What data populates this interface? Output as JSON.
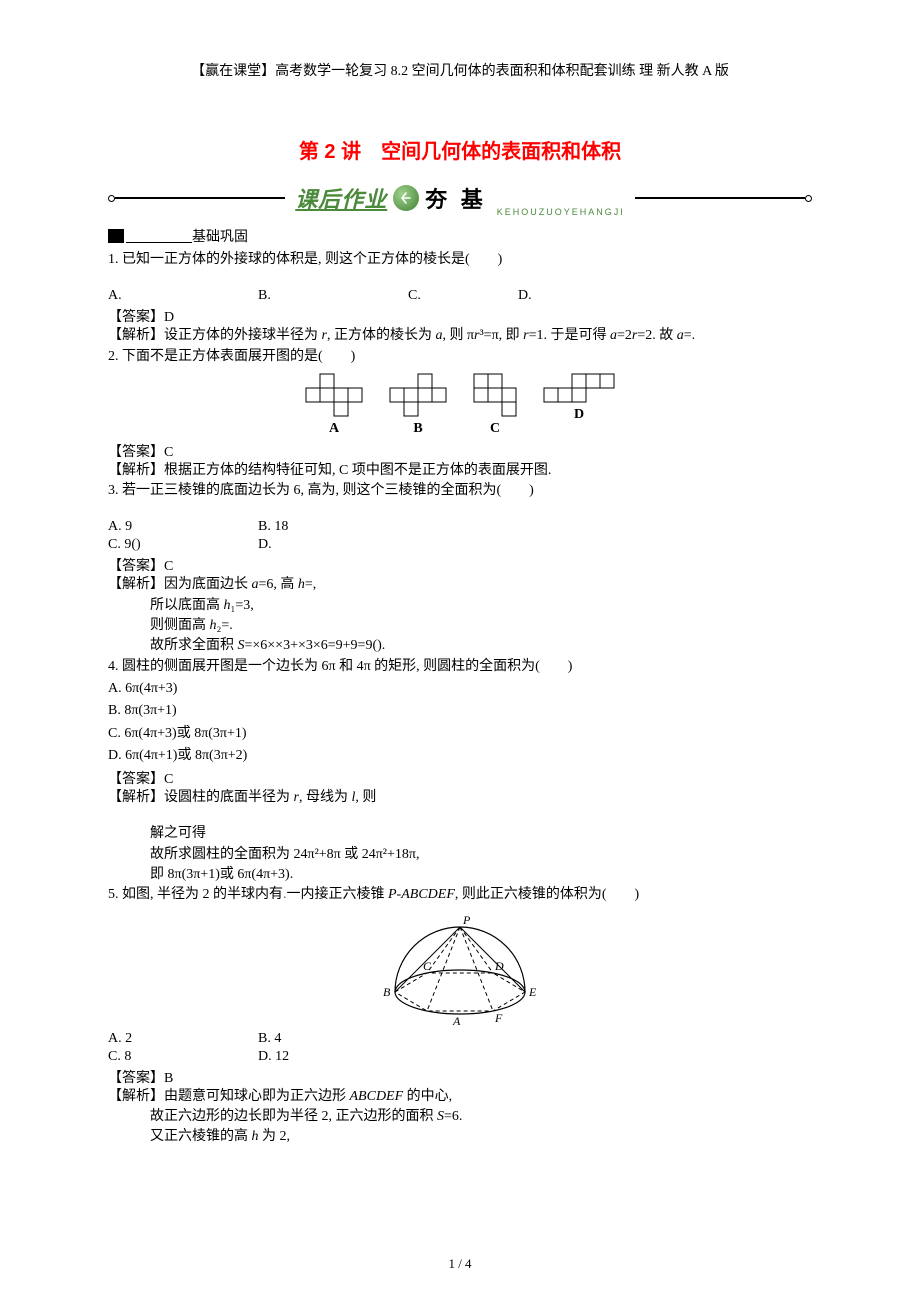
{
  "header": "【赢在课堂】高考数学一轮复习 8.2 空间几何体的表面积和体积配套训练 理 新人教 A 版",
  "title": "第 2 讲　空间几何体的表面积和体积",
  "banner": {
    "main": "课后作业",
    "sub": "夯 基",
    "pinyin": "KEHOUZUOYEHANGJI",
    "main_color": "#4a8a3a",
    "orb_color": "#3f7f30"
  },
  "section1_label": "基础巩固",
  "q1": {
    "text": "1. 已知一正方体的外接球的体积是, 则这个正方体的棱长是(　　)",
    "A": "A.",
    "B": "B.",
    "C": "C.",
    "D": "D.",
    "ans": "【答案】D",
    "exp": "【解析】设正方体的外接球半径为 r, 正方体的棱长为 a, 则 πr³=π, 即 r=1. 于是可得 a=2r=2. 故 a=."
  },
  "q2": {
    "text": "2. 下面不是正方体表面展开图的是(　　)",
    "labels": [
      "A",
      "B",
      "C",
      "D"
    ],
    "ans": "【答案】C",
    "exp": "【解析】根据正方体的结构特征可知, C 项中图不是正方体的表面展开图.",
    "cell": 14,
    "nets": {
      "A": [
        [
          1,
          0
        ],
        [
          0,
          1
        ],
        [
          1,
          1
        ],
        [
          2,
          1
        ],
        [
          3,
          1
        ],
        [
          2,
          2
        ]
      ],
      "B": [
        [
          2,
          0
        ],
        [
          0,
          1
        ],
        [
          1,
          1
        ],
        [
          2,
          1
        ],
        [
          3,
          1
        ],
        [
          1,
          2
        ]
      ],
      "C": [
        [
          0,
          0
        ],
        [
          1,
          0
        ],
        [
          0,
          1
        ],
        [
          1,
          1
        ],
        [
          2,
          1
        ],
        [
          2,
          2
        ]
      ],
      "D": [
        [
          2,
          0
        ],
        [
          3,
          0
        ],
        [
          4,
          0
        ],
        [
          0,
          1
        ],
        [
          1,
          1
        ],
        [
          2,
          1
        ]
      ]
    }
  },
  "q3": {
    "text": "3. 若一正三棱锥的底面边长为 6, 高为, 则这个三棱锥的全面积为(　　)",
    "A": "A. 9",
    "B": "B. 18",
    "C": "C. 9()",
    "D": "D.",
    "ans": "【答案】C",
    "exp1": "【解析】因为底面边长 a=6, 高 h=,",
    "exp2": "所以底面高 h₁=3,",
    "exp3": "则侧面高 h₂=.",
    "exp4": "故所求全面积 S=×6××3+×3×6=9+9=9()."
  },
  "q4": {
    "text": "4. 圆柱的侧面展开图是一个边长为 6π 和 4π 的矩形, 则圆柱的全面积为(　　)",
    "A": "A. 6π(4π+3)",
    "B": "B. 8π(3π+1)",
    "C": "C. 6π(4π+3)或 8π(3π+1)",
    "D": "D. 6π(4π+1)或 8π(3π+2)",
    "ans": "【答案】C",
    "exp1": "【解析】设圆柱的底面半径为 r, 母线为 l, 则",
    "exp2": "解之可得",
    "exp3": "故所求圆柱的全面积为 24π²+8π 或 24π²+18π,",
    "exp4": "即 8π(3π+1)或 6π(4π+3)."
  },
  "q5": {
    "text_a": "5. 如图, 半径为 2 的半球内有",
    "text_b": "一内接正六棱锥 P-ABCDEF, 则此正六棱锥的体积为(　　)",
    "A": "A. 2",
    "B": "B. 4",
    "C": "C. 8",
    "D": "D. 12",
    "ans": "【答案】B",
    "exp1": "【解析】由题意可知球心即为正六边形 ABCDEF 的中心,",
    "exp2": "故正六边形的边长即为半径 2, 正六边形的面积 S=6.",
    "exp3": "又正六棱锥的高 h 为 2,",
    "fig": {
      "labels": {
        "P": "P",
        "A": "A",
        "B": "B",
        "C": "C",
        "D": "D",
        "E": "E",
        "F": "F"
      },
      "label_fontsize": 12,
      "label_style": "italic"
    }
  },
  "footer": "1 / 4",
  "colors": {
    "title": "#ff0000",
    "text": "#000000",
    "bg": "#ffffff"
  }
}
